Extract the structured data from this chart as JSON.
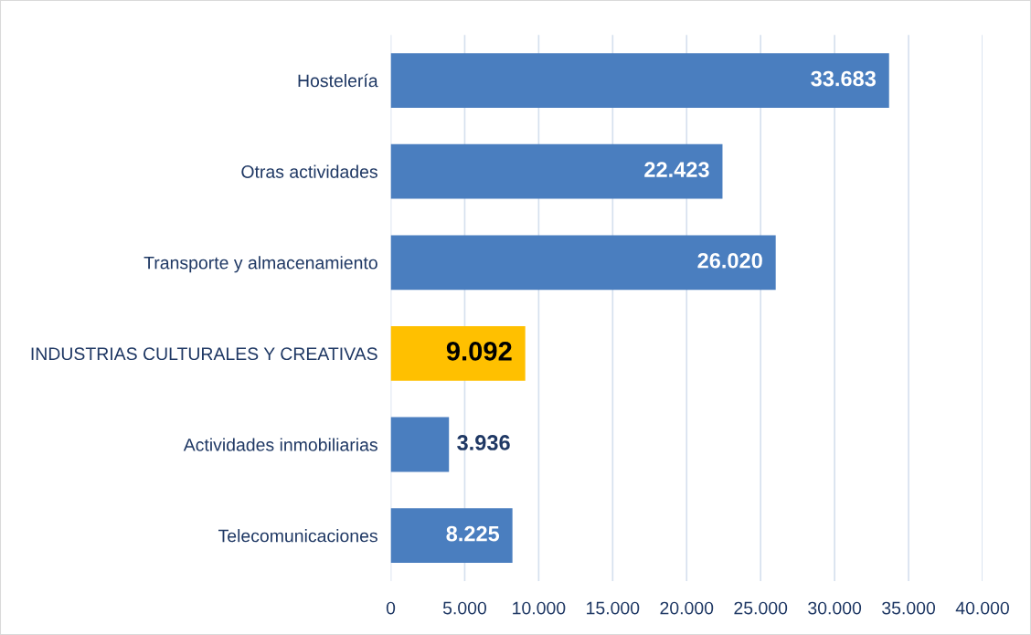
{
  "chart_data": {
    "type": "bar",
    "orientation": "horizontal",
    "categories": [
      "Hostelería",
      "Otras actividades",
      "Transporte y almacenamiento",
      "INDUSTRIAS CULTURALES Y CREATIVAS",
      "Actividades inmobiliarias",
      "Telecomunicaciones"
    ],
    "values": [
      33683,
      22423,
      26020,
      9092,
      3936,
      8225
    ],
    "value_labels": [
      "33.683",
      "22.423",
      "26.020",
      "9.092",
      "3.936",
      "8.225"
    ],
    "colors": [
      "#4a7ebf",
      "#4a7ebf",
      "#4a7ebf",
      "#ffc000",
      "#4a7ebf",
      "#4a7ebf"
    ],
    "xlim": [
      0,
      40000
    ],
    "xticks": [
      0,
      {
        "value": 5000,
        "label": "5.000"
      },
      {
        "value": 10000,
        "label": "10.000"
      },
      {
        "value": 15000,
        "label": "15.000"
      },
      {
        "value": 20000,
        "label": "20.000"
      },
      {
        "value": 25000,
        "label": "25.000"
      },
      {
        "value": 30000,
        "label": "30.000"
      },
      {
        "value": 35000,
        "label": "35.000"
      },
      {
        "value": 40000,
        "label": "40.000"
      }
    ],
    "grid": "x"
  }
}
